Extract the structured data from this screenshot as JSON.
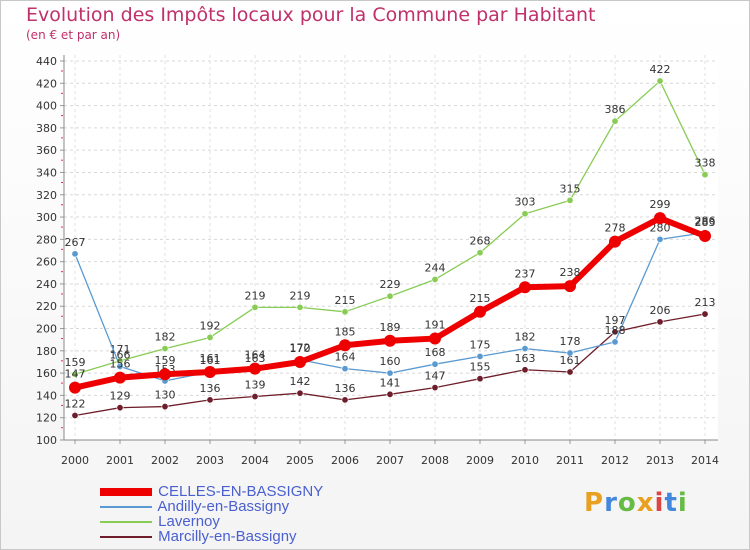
{
  "chart_data": {
    "type": "line",
    "title": "Evolution des Impôts locaux pour la Commune par Habitant",
    "subtitle": "(en € et par an)",
    "x": [
      "2000",
      "2001",
      "2002",
      "2003",
      "2004",
      "2005",
      "2006",
      "2007",
      "2008",
      "2009",
      "2010",
      "2011",
      "2012",
      "2013",
      "2014"
    ],
    "ylim": [
      100,
      440
    ],
    "yticks": [
      "100",
      "120",
      "140",
      "160",
      "180",
      "200",
      "220",
      "240",
      "260",
      "280",
      "300",
      "320",
      "340",
      "360",
      "380",
      "400",
      "420",
      "440"
    ],
    "series": [
      {
        "name": "Lavernoy",
        "color": "#88cc55",
        "values": [
          159,
          171,
          182,
          192,
          219,
          219,
          215,
          229,
          244,
          268,
          303,
          315,
          386,
          422,
          338
        ]
      },
      {
        "name": "Marcilly-en-Bassigny",
        "color": "#6e1e2a",
        "values": [
          122,
          129,
          130,
          136,
          139,
          142,
          136,
          141,
          147,
          155,
          163,
          161,
          197,
          206,
          213
        ]
      },
      {
        "name": "Andilly-en-Bassigny",
        "color": "#5a9ad0",
        "values": [
          267,
          166,
          153,
          161,
          163,
          172,
          164,
          160,
          168,
          175,
          182,
          178,
          188,
          280,
          286
        ]
      },
      {
        "name": "CELLES-EN-BASSIGNY",
        "color": "#ee0000",
        "values": [
          147,
          156,
          159,
          161,
          164,
          170,
          185,
          189,
          191,
          215,
          237,
          238,
          278,
          299,
          283
        ]
      }
    ]
  },
  "legend": {
    "items": [
      {
        "label": "CELLES-EN-BASSIGNY",
        "color": "#ee0000"
      },
      {
        "label": "Andilly-en-Bassigny",
        "color": "#5a9ad0"
      },
      {
        "label": "Lavernoy",
        "color": "#88cc55"
      },
      {
        "label": "Marcilly-en-Bassigny",
        "color": "#6e1e2a"
      }
    ]
  },
  "brand": {
    "letters": [
      "P",
      "r",
      "o",
      "x",
      "i",
      "t",
      "i"
    ],
    "colors": [
      "#e8a020",
      "#4488dd",
      "#66bb44",
      "#e8a020",
      "#dd4444",
      "#4488dd",
      "#66bb44"
    ]
  }
}
